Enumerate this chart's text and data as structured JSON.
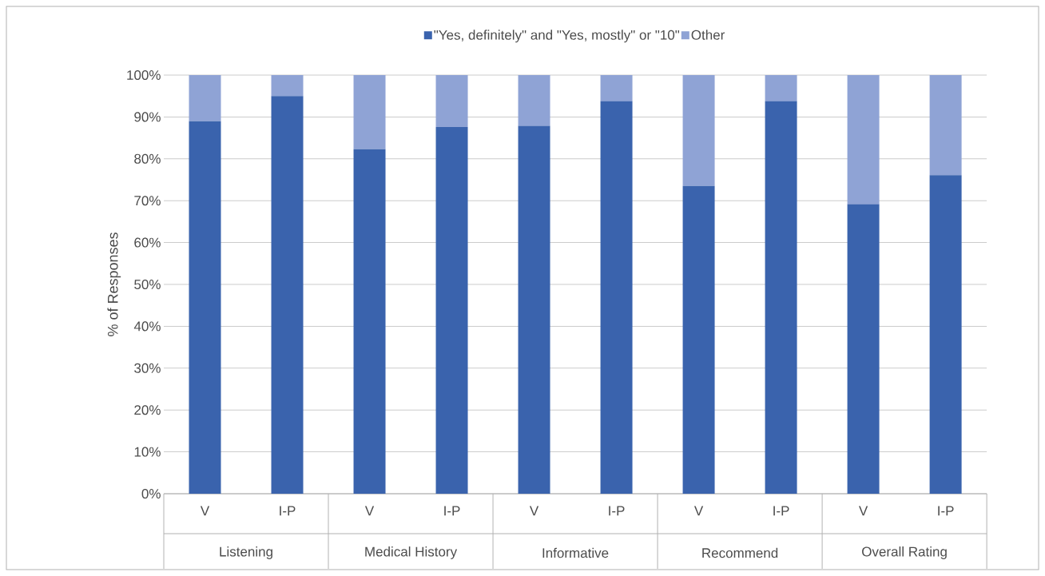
{
  "chart_data": {
    "type": "bar",
    "stacked": true,
    "ylabel": "% of Responses",
    "categories": [
      "V",
      "I-P",
      "V",
      "I-P",
      "V",
      "I-P",
      "V",
      "I-P",
      "V",
      "I-P"
    ],
    "series": [
      {
        "name": "\"Yes, definitely\" and \"Yes, mostly\" or \"10\"",
        "color": "#3a63ad",
        "values": [
          89,
          95,
          82.3,
          87.6,
          87.9,
          93.8,
          73.5,
          93.8,
          69.2,
          76.1
        ]
      },
      {
        "name": "Other",
        "color": "#8fa3d5",
        "values": [
          11,
          5,
          17.7,
          12.4,
          12.1,
          6.2,
          26.5,
          6.2,
          30.8,
          23.9
        ]
      }
    ],
    "ylim": [
      0,
      100
    ],
    "yticks": [
      {
        "value": 0,
        "label": "0%"
      },
      {
        "value": 10,
        "label": "10%"
      },
      {
        "value": 20,
        "label": "20%"
      },
      {
        "value": 30,
        "label": "30%"
      },
      {
        "value": 40,
        "label": "40%"
      },
      {
        "value": 50,
        "label": "50%"
      },
      {
        "value": 60,
        "label": "60%"
      },
      {
        "value": 70,
        "label": "70%"
      },
      {
        "value": 80,
        "label": "80%"
      },
      {
        "value": 90,
        "label": "90%"
      },
      {
        "value": 100,
        "label": "100%"
      }
    ],
    "grid": "y",
    "legend": "top",
    "annotations": [
      "Listening",
      "Medical History",
      "Informative",
      "Recommend",
      "Overall Rating"
    ]
  }
}
